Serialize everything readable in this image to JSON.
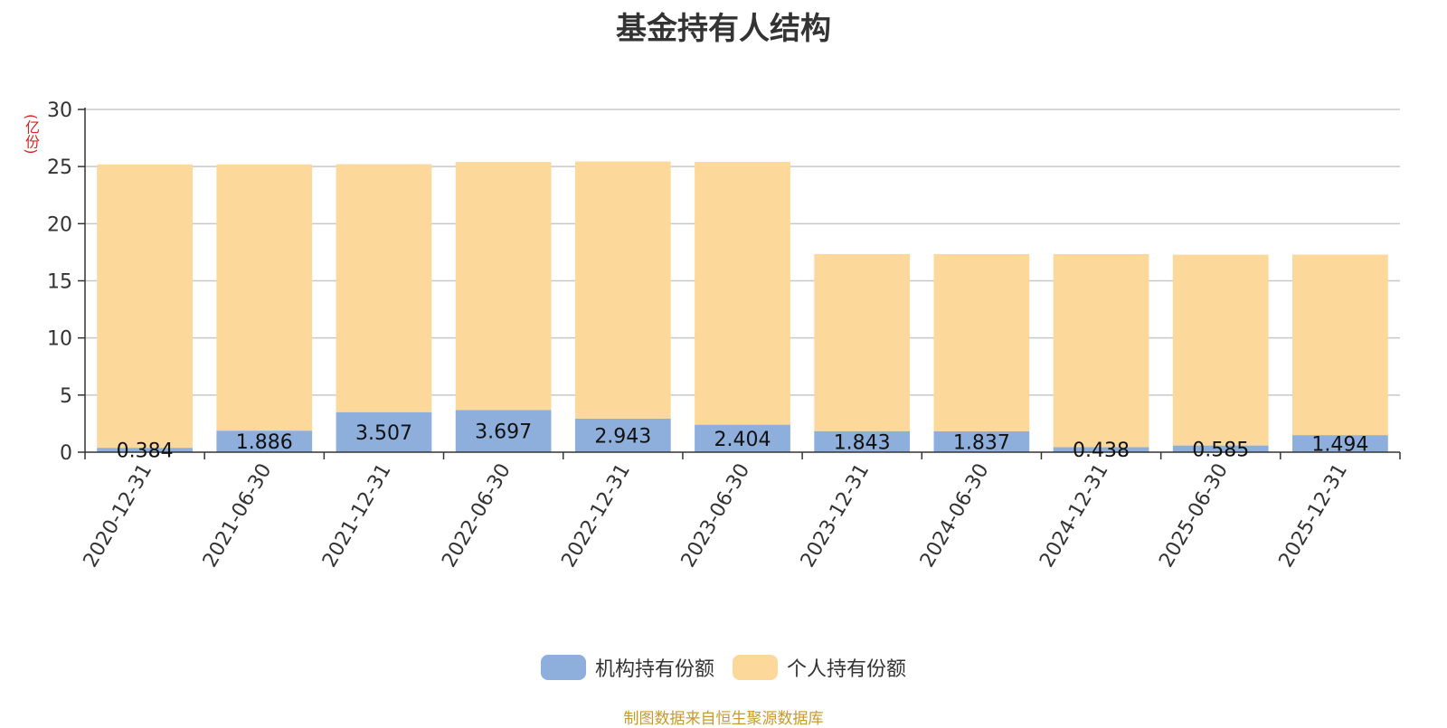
{
  "chart_data": {
    "type": "bar",
    "stacked": true,
    "title": "基金持有人结构",
    "ylabel": "(亿份)",
    "ylim": [
      0,
      30
    ],
    "yticks": [
      0,
      5,
      10,
      15,
      20,
      25,
      30
    ],
    "grid": true,
    "legend_position": "bottom-center",
    "categories": [
      "2020-12-31",
      "2021-06-30",
      "2021-12-31",
      "2022-06-30",
      "2022-12-31",
      "2023-06-30",
      "2023-12-31",
      "2024-06-30",
      "2024-12-31",
      "2025-06-30",
      "2025-12-31"
    ],
    "series": [
      {
        "name": "机构持有份额",
        "color": "#8eaedc",
        "values": [
          0.384,
          1.886,
          3.507,
          3.697,
          2.943,
          2.404,
          1.843,
          1.837,
          0.438,
          0.585,
          1.494
        ],
        "labels": [
          "0.384",
          "1.886",
          "3.507",
          "3.697",
          "2.943",
          "2.404",
          "1.843",
          "1.837",
          "0.438",
          "0.585",
          "1.494"
        ]
      },
      {
        "name": "个人持有份额",
        "color": "#fdd89b",
        "values": [
          24.8,
          23.3,
          21.7,
          21.7,
          22.5,
          23.0,
          15.5,
          15.5,
          16.9,
          16.7,
          15.8
        ]
      }
    ]
  },
  "source_text": "制图数据来自恒生聚源数据库"
}
